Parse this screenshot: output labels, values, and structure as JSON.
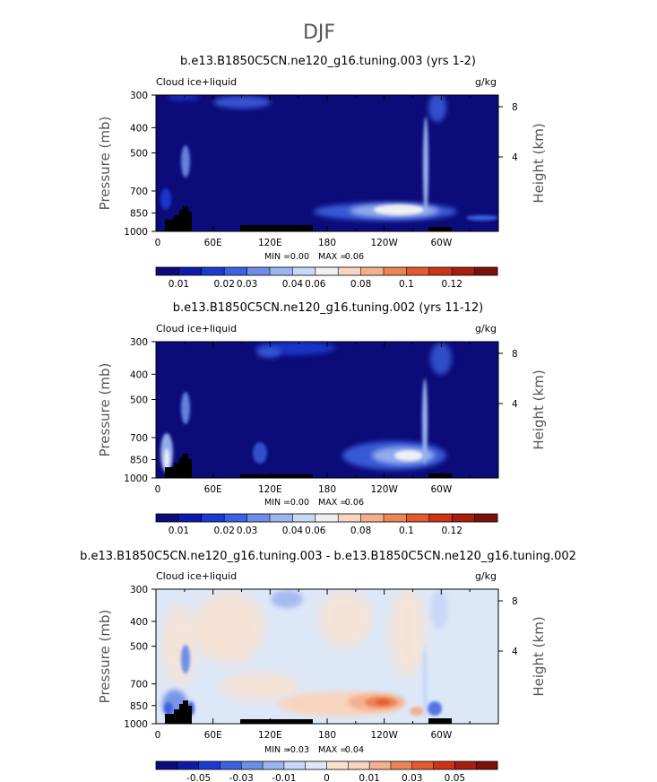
{
  "figure_title": "DJF",
  "colors": {
    "abs_scale": [
      "#0b0b7a",
      "#0d1aa8",
      "#1d3ad0",
      "#3d62e0",
      "#6e8ee8",
      "#9db4f0",
      "#c9d8f6",
      "#eef0f3",
      "#f8d5c0",
      "#f3b08f",
      "#ec8458",
      "#e25a30",
      "#cc3418",
      "#a51f10",
      "#7a1208"
    ],
    "diff_scale": [
      "#0b0b7a",
      "#0d1aa8",
      "#1d3ad0",
      "#3d62e0",
      "#6e8ee8",
      "#9db4f0",
      "#c9d8f6",
      "#dce8f8",
      "#f9e2d2",
      "#f8d5c0",
      "#f3b08f",
      "#ec8458",
      "#e25a30",
      "#cc3418",
      "#a51f10",
      "#7a1208"
    ],
    "panel_bg_abs": "#0b0b7a",
    "panel_bg_diff": "#dce8f8",
    "topography": "#000000"
  },
  "chart_data": [
    {
      "type": "heatmap",
      "title": "b.e13.B1850C5CN.ne120_g16.tuning.003 (yrs 1-2)",
      "left_label": "Cloud ice+liquid",
      "units": "g/kg",
      "ylabel": "Pressure (mb)",
      "y2label": "Height (km)",
      "x_ticks": [
        "0",
        "60E",
        "120E",
        "180",
        "120W",
        "60W"
      ],
      "x_tick_values": [
        0,
        60,
        120,
        180,
        240,
        300
      ],
      "xlim": [
        0,
        360
      ],
      "y_ticks": [
        "300",
        "400",
        "500",
        "700",
        "850",
        "1000"
      ],
      "y_tick_values": [
        300,
        400,
        500,
        700,
        850,
        1000
      ],
      "ylim": [
        1000,
        300
      ],
      "y2_ticks": [
        "8",
        "4"
      ],
      "min_label": "MIN =",
      "min_value": "0.00",
      "max_label": "MAX =",
      "max_value": "0.06",
      "colorbar_ticks": [
        "0.01",
        "0.02",
        "0.03",
        "0.04",
        "0.06",
        "0.08",
        "0.1",
        "0.12"
      ],
      "features": [
        {
          "lon": 340,
          "p": 922,
          "value": 0.06
        },
        {
          "lon": 255,
          "p": 905,
          "value": 0.04
        },
        {
          "lon": 33,
          "p": 645,
          "value": 0.02
        }
      ]
    },
    {
      "type": "heatmap",
      "title": "b.e13.B1850C5CN.ne120_g16.tuning.002 (yrs 11-12)",
      "left_label": "Cloud ice+liquid",
      "units": "g/kg",
      "ylabel": "Pressure (mb)",
      "y2label": "Height (km)",
      "x_ticks": [
        "0",
        "60E",
        "120E",
        "180",
        "120W",
        "60W"
      ],
      "x_tick_values": [
        0,
        60,
        120,
        180,
        240,
        300
      ],
      "xlim": [
        0,
        360
      ],
      "y_ticks": [
        "300",
        "400",
        "500",
        "700",
        "850",
        "1000"
      ],
      "y_tick_values": [
        300,
        400,
        500,
        700,
        850,
        1000
      ],
      "ylim": [
        1000,
        300
      ],
      "y2_ticks": [
        "8",
        "4"
      ],
      "min_label": "MIN =",
      "min_value": "0.00",
      "max_label": "MAX =",
      "max_value": "0.06",
      "colorbar_ticks": [
        "0.01",
        "0.02",
        "0.03",
        "0.04",
        "0.06",
        "0.08",
        "0.1",
        "0.12"
      ],
      "features": [
        {
          "lon": 257,
          "p": 865,
          "value": 0.06
        },
        {
          "lon": 10,
          "p": 900,
          "value": 0.06
        },
        {
          "lon": 33,
          "p": 620,
          "value": 0.02
        }
      ]
    },
    {
      "type": "heatmap",
      "title": "b.e13.B1850C5CN.ne120_g16.tuning.003 - b.e13.B1850C5CN.ne120_g16.tuning.002",
      "left_label": "Cloud ice+liquid",
      "units": "g/kg",
      "ylabel": "Pressure (mb)",
      "y2label": "Height (km)",
      "x_ticks": [
        "0",
        "60E",
        "120E",
        "180",
        "120W",
        "60W"
      ],
      "x_tick_values": [
        0,
        60,
        120,
        180,
        240,
        300
      ],
      "xlim": [
        0,
        360
      ],
      "y_ticks": [
        "300",
        "400",
        "500",
        "700",
        "850",
        "1000"
      ],
      "y_tick_values": [
        300,
        400,
        500,
        700,
        850,
        1000
      ],
      "ylim": [
        1000,
        300
      ],
      "y2_ticks": [
        "8",
        "4"
      ],
      "min_label": "MIN =",
      "min_value": "-0.03",
      "max_label": "MAX =",
      "max_value": "0.04",
      "colorbar_ticks": [
        "-0.05",
        "-0.03",
        "-0.01",
        "0",
        "0.01",
        "0.03",
        "0.05"
      ],
      "features": [
        {
          "lon": 250,
          "p": 915,
          "value": 0.04
        },
        {
          "lon": 23,
          "p": 910,
          "value": -0.03
        }
      ]
    }
  ]
}
